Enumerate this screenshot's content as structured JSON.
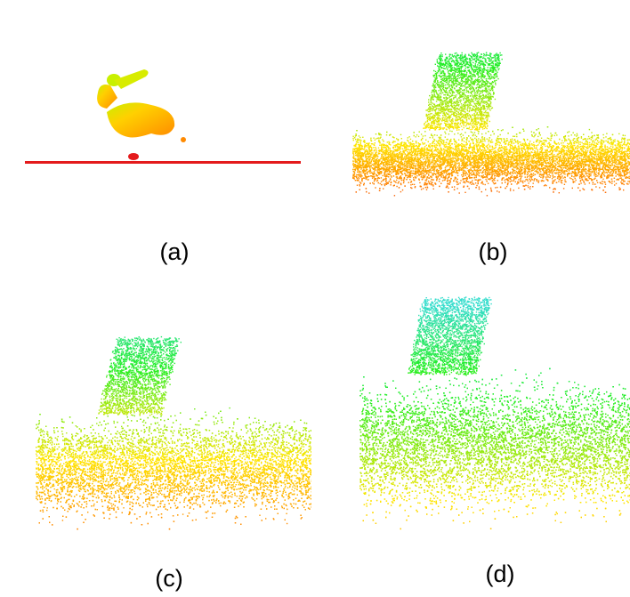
{
  "figure": {
    "panels": [
      {
        "id": "a",
        "label": "(a)"
      },
      {
        "id": "b",
        "label": "(b)"
      },
      {
        "id": "c",
        "label": "(c)"
      },
      {
        "id": "d",
        "label": "(d)"
      }
    ]
  },
  "colors": {
    "red": "#e41a1c",
    "orange": "#ff7f00",
    "yellow": "#ffe600",
    "green": "#22ee22",
    "cyan": "#33ddcc"
  }
}
